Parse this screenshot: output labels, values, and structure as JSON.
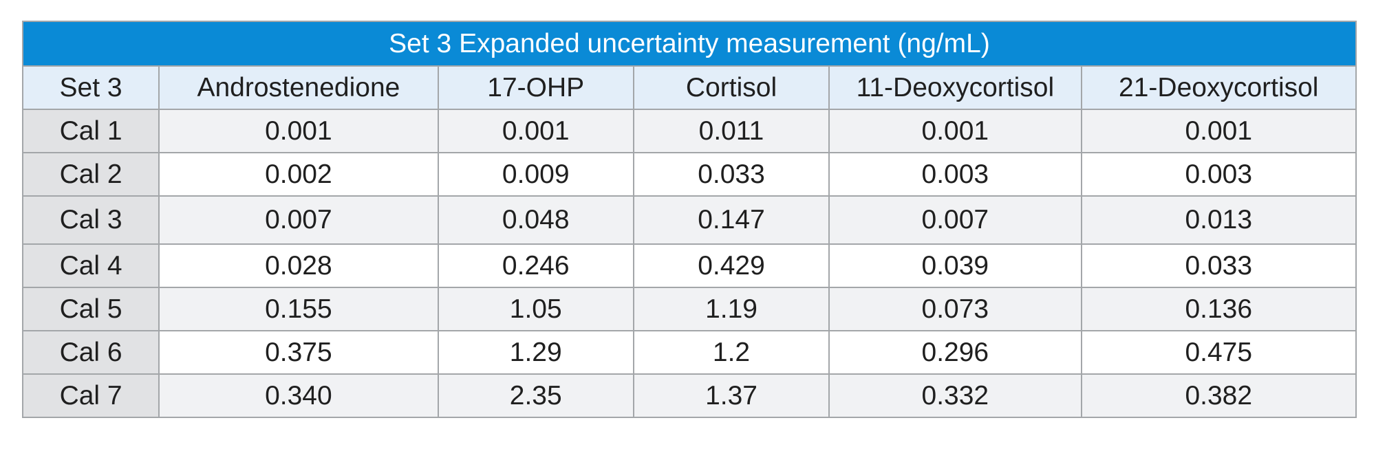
{
  "table": {
    "title": "Set 3 Expanded uncertainty measurement (ng/mL)",
    "headers": [
      "Set 3",
      "Androstenedione",
      "17-OHP",
      "Cortisol",
      "11-Deoxycortisol",
      "21-Deoxycortisol"
    ],
    "rows": [
      {
        "label": "Cal 1",
        "values": [
          "0.001",
          "0.001",
          "0.011",
          "0.001",
          "0.001"
        ]
      },
      {
        "label": "Cal 2",
        "values": [
          "0.002",
          "0.009",
          "0.033",
          "0.003",
          "0.003"
        ]
      },
      {
        "label": "Cal 3",
        "values": [
          "0.007",
          "0.048",
          "0.147",
          "0.007",
          "0.013"
        ]
      },
      {
        "label": "Cal 4",
        "values": [
          "0.028",
          "0.246",
          "0.429",
          "0.039",
          "0.033"
        ]
      },
      {
        "label": "Cal 5",
        "values": [
          "0.155",
          "1.05",
          "1.19",
          "0.073",
          "0.136"
        ]
      },
      {
        "label": "Cal 6",
        "values": [
          "0.375",
          "1.29",
          "1.2",
          "0.296",
          "0.475"
        ]
      },
      {
        "label": "Cal 7",
        "values": [
          "0.340",
          "2.35",
          "1.37",
          "0.332",
          "0.382"
        ]
      }
    ],
    "colors": {
      "title_background": "#0a8ad6",
      "header_background": "#e3eef9",
      "row_label_background": "#e1e2e4",
      "striped_row_background": "#f1f2f4",
      "border": "#a3a6a9"
    }
  }
}
